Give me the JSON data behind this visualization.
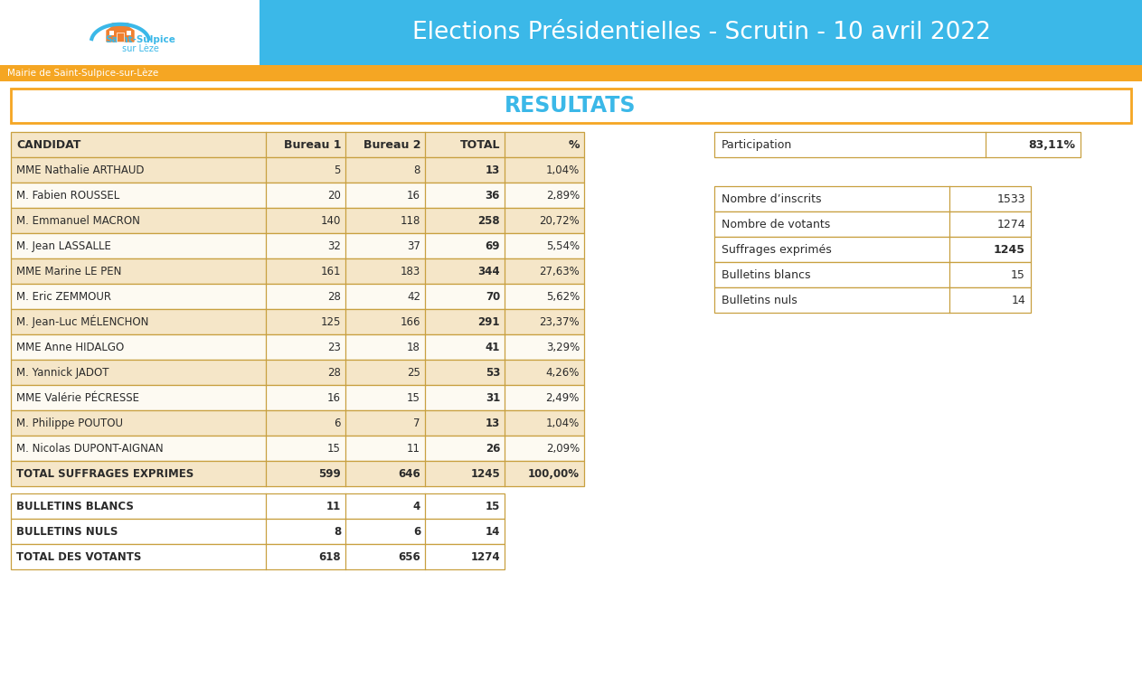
{
  "title_header": "Elections Présidentielles - Scrutin - 10 avril 2022",
  "subtitle": "Mairie de Saint-Sulpice-sur-Lèze",
  "section_title": "RESULTATS",
  "header_bg_color": "#3BB8E8",
  "orange_color": "#F5A623",
  "header_text_color": "#FFFFFF",
  "table_header_bg": "#F5E6C8",
  "table_row_alt_bg": "#FDFAF2",
  "table_row_bg": "#FFFFFF",
  "border_color": "#C8A040",
  "text_dark": "#2B2B2B",
  "candidates": [
    [
      "MME Nathalie ARTHAUD",
      "5",
      "8",
      "13",
      "1,04%"
    ],
    [
      "M. Fabien ROUSSEL",
      "20",
      "16",
      "36",
      "2,89%"
    ],
    [
      "M. Emmanuel MACRON",
      "140",
      "118",
      "258",
      "20,72%"
    ],
    [
      "M. Jean LASSALLE",
      "32",
      "37",
      "69",
      "5,54%"
    ],
    [
      "MME Marine LE PEN",
      "161",
      "183",
      "344",
      "27,63%"
    ],
    [
      "M. Eric ZEMMOUR",
      "28",
      "42",
      "70",
      "5,62%"
    ],
    [
      "M. Jean-Luc MÉLENCHON",
      "125",
      "166",
      "291",
      "23,37%"
    ],
    [
      "MME Anne HIDALGO",
      "23",
      "18",
      "41",
      "3,29%"
    ],
    [
      "M. Yannick JADOT",
      "28",
      "25",
      "53",
      "4,26%"
    ],
    [
      "MME Valérie PÉCRESSE",
      "16",
      "15",
      "31",
      "2,49%"
    ],
    [
      "M. Philippe POUTOU",
      "6",
      "7",
      "13",
      "1,04%"
    ],
    [
      "M. Nicolas DUPONT-AIGNAN",
      "15",
      "11",
      "26",
      "2,09%"
    ]
  ],
  "total_row": [
    "TOTAL SUFFRAGES EXPRIMES",
    "599",
    "646",
    "1245",
    "100,00%"
  ],
  "bottom_rows": [
    [
      "BULLETINS BLANCS",
      "11",
      "4",
      "15"
    ],
    [
      "BULLETINS NULS",
      "8",
      "6",
      "14"
    ],
    [
      "TOTAL DES VOTANTS",
      "618",
      "656",
      "1274"
    ]
  ],
  "col_headers": [
    "CANDIDAT",
    "Bureau 1",
    "Bureau 2",
    "TOTAL",
    "%"
  ],
  "side_participation": {
    "label": "Participation",
    "value": "83,11%"
  },
  "side_stats": [
    [
      "Nombre d’inscrits",
      "1533",
      false
    ],
    [
      "Nombre de votants",
      "1274",
      false
    ],
    [
      "Suffrages exprimés",
      "1245",
      true
    ],
    [
      "Bulletins blancs",
      "15",
      false
    ],
    [
      "Bulletins nuls",
      "14",
      false
    ]
  ],
  "fig_w": 12.63,
  "fig_h": 7.48,
  "dpi": 100
}
